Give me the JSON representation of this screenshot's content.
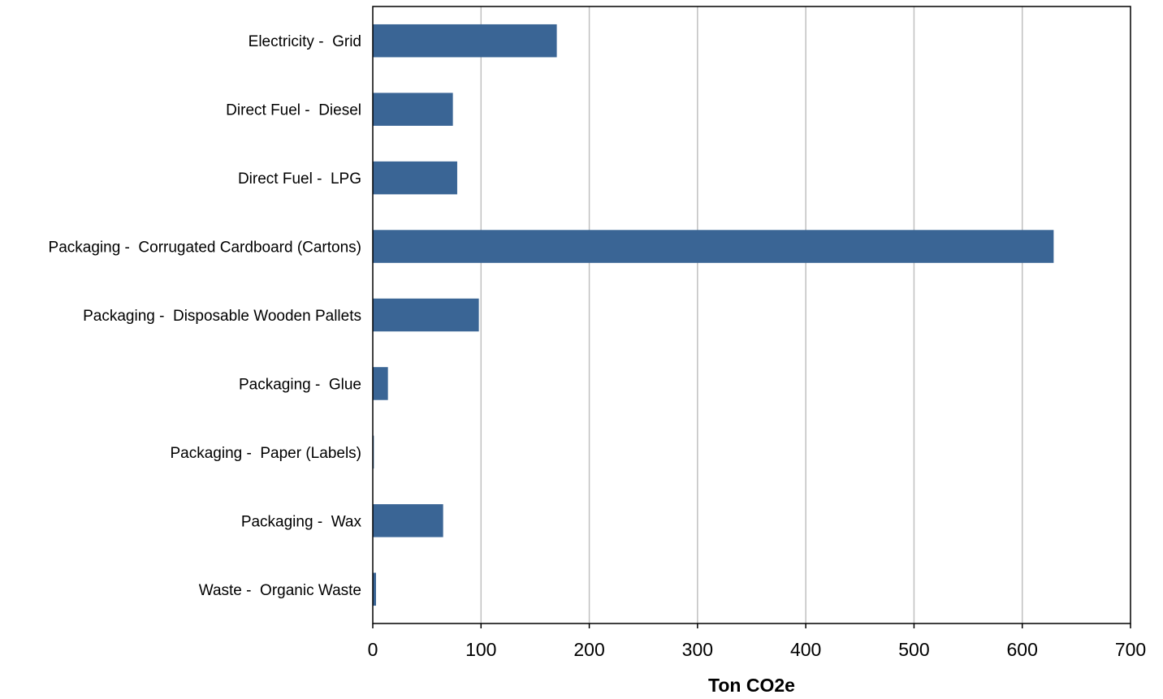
{
  "chart_data": {
    "type": "bar",
    "orientation": "horizontal",
    "categories": [
      "Electricity -  Grid",
      "Direct Fuel -  Diesel",
      "Direct Fuel -  LPG",
      "Packaging -  Corrugated Cardboard (Cartons)",
      "Packaging -  Disposable Wooden Pallets",
      "Packaging -  Glue",
      "Packaging -  Paper (Labels)",
      "Packaging -  Wax",
      "Waste -  Organic Waste"
    ],
    "values": [
      170,
      74,
      78,
      629,
      98,
      14,
      1,
      65,
      3
    ],
    "xlabel": "Ton CO2e",
    "ylabel": "",
    "xlim": [
      0,
      700
    ],
    "xticks": [
      0,
      100,
      200,
      300,
      400,
      500,
      600,
      700
    ],
    "xtick_labels": [
      "0",
      "100",
      "200",
      "300",
      "400",
      "500",
      "600",
      "700"
    ],
    "grid": "vertical",
    "legend": "none",
    "bar_color": "#3a6595",
    "grid_color": "#c0c0c0"
  }
}
